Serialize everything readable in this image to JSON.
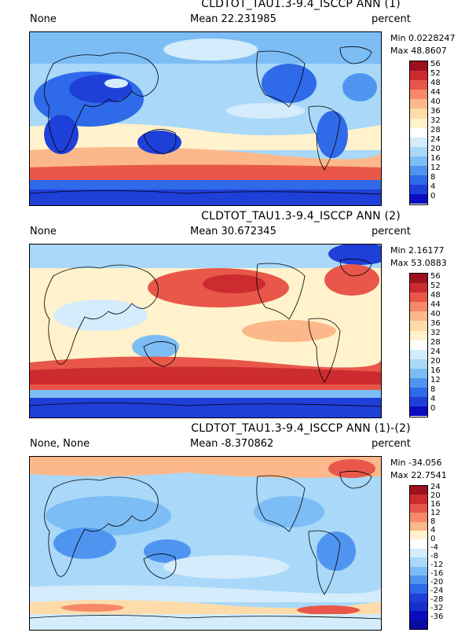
{
  "colors": {
    "palette": [
      "#0b0bbf",
      "#1f3fd9",
      "#2f6ae8",
      "#4f95f0",
      "#7dbdf5",
      "#a9d8f8",
      "#d4ecfb",
      "#ffffff",
      "#fff2cc",
      "#fddcaa",
      "#fcb88a",
      "#f5896a",
      "#e8574a",
      "#cc2b2f",
      "#9c1020"
    ],
    "land_outline": "#000000"
  },
  "panels": [
    {
      "title": "CLDTOT_TAU1.3-9.4_ISCCP ANN (1)",
      "left_label": "None",
      "mean_label": "Mean 22.231985",
      "units": "percent",
      "min_label": "Min 0.0228247",
      "max_label": "Max 48.8607",
      "colorbar_ticks": [
        "56",
        "52",
        "48",
        "44",
        "40",
        "36",
        "32",
        "28",
        "24",
        "20",
        "16",
        "12",
        "8",
        "4",
        "0"
      ],
      "regions_desc": "stratus-decks"
    },
    {
      "title": "CLDTOT_TAU1.3-9.4_ISCCP ANN (2)",
      "left_label": "None",
      "mean_label": "Mean 30.672345",
      "units": "percent",
      "min_label": "Min 2.16177",
      "max_label": "Max 53.0883",
      "colorbar_ticks": [
        "56",
        "52",
        "48",
        "44",
        "40",
        "36",
        "32",
        "28",
        "24",
        "20",
        "16",
        "12",
        "8",
        "4",
        "0"
      ],
      "regions_desc": "storm-tracks"
    },
    {
      "title": "CLDTOT_TAU1.3-9.4_ISCCP ANN (1)-(2)",
      "left_label": "None, None",
      "mean_label": "Mean -8.370862",
      "units": "percent",
      "min_label": "Min -34.056",
      "max_label": "Max 22.7541",
      "colorbar_ticks": [
        "24",
        "20",
        "16",
        "12",
        "8",
        "4",
        "0",
        "-4",
        "-8",
        "-12",
        "-16",
        "-20",
        "-24",
        "-28",
        "-32",
        "-36"
      ],
      "regions_desc": "difference"
    }
  ]
}
